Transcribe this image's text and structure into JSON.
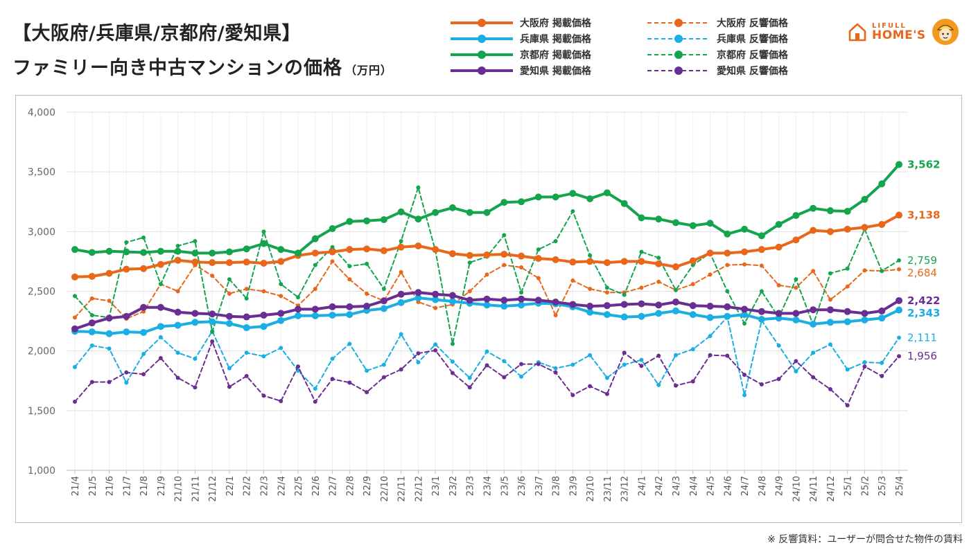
{
  "header": {
    "title_line1": "【大阪府/兵庫県/京都府/愛知県】",
    "title_line2": "ファミリー向き中古マンションの価格",
    "unit": "（万円）"
  },
  "logo": {
    "top": "LIFULL",
    "bottom": "HOME'S"
  },
  "footnote": "※ 反響賃料：ユーザーが問合せた物件の賃料",
  "colors": {
    "osaka": "#e8671a",
    "hyogo": "#1aaee3",
    "kyoto": "#14a44d",
    "aichi": "#6a2d91"
  },
  "chart_data": {
    "type": "line",
    "ylim": [
      1000,
      4000
    ],
    "yticks": [
      "1,000",
      "1,500",
      "2,000",
      "2,500",
      "3,000",
      "3,500",
      "4,000"
    ],
    "grid": true,
    "legend_position": "top",
    "categories": [
      "21/4",
      "21/5",
      "21/6",
      "21/7",
      "21/8",
      "21/9",
      "21/10",
      "21/11",
      "21/12",
      "22/1",
      "22/2",
      "22/3",
      "22/4",
      "22/5",
      "22/6",
      "22/7",
      "22/8",
      "22/9",
      "22/10",
      "22/11",
      "22/12",
      "23/1",
      "23/2",
      "23/3",
      "23/4",
      "23/5",
      "23/6",
      "23/7",
      "23/8",
      "23/9",
      "23/10",
      "23/11",
      "23/12",
      "24/1",
      "24/2",
      "24/3",
      "24/4",
      "24/5",
      "24/6",
      "24/7",
      "24/8",
      "24/9",
      "24/10",
      "24/11",
      "24/12",
      "25/1",
      "25/2",
      "25/3",
      "25/4"
    ],
    "series": [
      {
        "name": "大阪府 掲載価格",
        "color": "#e8671a",
        "style": "solid",
        "end_label": "3,138",
        "values": [
          2620,
          2625,
          2650,
          2685,
          2690,
          2725,
          2760,
          2745,
          2740,
          2740,
          2745,
          2735,
          2750,
          2800,
          2820,
          2830,
          2850,
          2855,
          2840,
          2870,
          2880,
          2850,
          2815,
          2800,
          2805,
          2810,
          2795,
          2775,
          2765,
          2745,
          2750,
          2740,
          2750,
          2750,
          2730,
          2705,
          2755,
          2820,
          2820,
          2830,
          2850,
          2870,
          2930,
          3010,
          3000,
          3020,
          3035,
          3060,
          3138
        ]
      },
      {
        "name": "兵庫県 掲載価格",
        "color": "#1aaee3",
        "style": "solid",
        "end_label": "2,343",
        "values": [
          2165,
          2160,
          2145,
          2160,
          2155,
          2205,
          2215,
          2240,
          2245,
          2230,
          2195,
          2205,
          2255,
          2295,
          2295,
          2300,
          2305,
          2340,
          2355,
          2405,
          2445,
          2430,
          2415,
          2400,
          2385,
          2375,
          2385,
          2400,
          2395,
          2370,
          2325,
          2305,
          2285,
          2290,
          2315,
          2335,
          2305,
          2280,
          2290,
          2305,
          2265,
          2275,
          2260,
          2225,
          2240,
          2245,
          2260,
          2275,
          2343
        ]
      },
      {
        "name": "京都府 掲載価格",
        "color": "#14a44d",
        "style": "solid",
        "end_label": "3,562",
        "values": [
          2850,
          2825,
          2835,
          2830,
          2825,
          2835,
          2835,
          2820,
          2820,
          2830,
          2855,
          2900,
          2850,
          2820,
          2940,
          3025,
          3085,
          3090,
          3100,
          3165,
          3105,
          3160,
          3200,
          3160,
          3160,
          3245,
          3250,
          3290,
          3290,
          3320,
          3275,
          3325,
          3235,
          3115,
          3105,
          3075,
          3050,
          3070,
          2980,
          3020,
          2965,
          3060,
          3135,
          3195,
          3175,
          3170,
          3270,
          3400,
          3562
        ]
      },
      {
        "name": "愛知県 掲載価格",
        "color": "#6a2d91",
        "style": "solid",
        "end_label": "2,422",
        "values": [
          2185,
          2235,
          2275,
          2290,
          2365,
          2365,
          2325,
          2315,
          2310,
          2290,
          2285,
          2300,
          2315,
          2350,
          2350,
          2370,
          2370,
          2375,
          2420,
          2475,
          2490,
          2475,
          2465,
          2425,
          2435,
          2425,
          2435,
          2425,
          2410,
          2390,
          2375,
          2380,
          2390,
          2395,
          2385,
          2410,
          2380,
          2375,
          2370,
          2350,
          2330,
          2315,
          2315,
          2345,
          2345,
          2330,
          2315,
          2335,
          2422
        ]
      },
      {
        "name": "大阪府 反響価格",
        "color": "#e8671a",
        "style": "dashed",
        "end_label": "2,684",
        "values": [
          2280,
          2440,
          2420,
          2270,
          2330,
          2560,
          2500,
          2720,
          2630,
          2480,
          2520,
          2500,
          2460,
          2380,
          2520,
          2750,
          2600,
          2480,
          2420,
          2660,
          2410,
          2360,
          2390,
          2500,
          2640,
          2720,
          2700,
          2610,
          2300,
          2590,
          2520,
          2490,
          2490,
          2530,
          2580,
          2510,
          2560,
          2640,
          2720,
          2725,
          2715,
          2550,
          2530,
          2670,
          2430,
          2540,
          2675,
          2670,
          2684
        ]
      },
      {
        "name": "兵庫県 反響価格",
        "color": "#1aaee3",
        "style": "dashed",
        "end_label": "2,111",
        "values": [
          1865,
          2045,
          2020,
          1735,
          1975,
          2115,
          1985,
          1935,
          2165,
          1855,
          1985,
          1955,
          2025,
          1835,
          1685,
          1935,
          2060,
          1835,
          1885,
          2140,
          1905,
          2055,
          1910,
          1775,
          1995,
          1915,
          1785,
          1905,
          1855,
          1885,
          1965,
          1775,
          1885,
          1925,
          1715,
          1965,
          2015,
          2125,
          2285,
          1630,
          2255,
          2045,
          1830,
          1985,
          2055,
          1845,
          1905,
          1900,
          2111
        ]
      },
      {
        "name": "京都府 反響価格",
        "color": "#14a44d",
        "style": "dashed",
        "end_label": "2,759",
        "values": [
          2460,
          2300,
          2280,
          2910,
          2950,
          2560,
          2880,
          2920,
          2160,
          2600,
          2440,
          3000,
          2560,
          2450,
          2720,
          2870,
          2710,
          2730,
          2520,
          2920,
          3370,
          2840,
          2060,
          2740,
          2790,
          2970,
          2490,
          2850,
          2920,
          3170,
          2800,
          2530,
          2470,
          2830,
          2780,
          2510,
          2720,
          2820,
          2500,
          2230,
          2500,
          2280,
          2600,
          2220,
          2650,
          2690,
          3020,
          2670,
          2759
        ]
      },
      {
        "name": "愛知県 反響価格",
        "color": "#6a2d91",
        "style": "dashed",
        "end_label": "1,956",
        "values": [
          1575,
          1740,
          1740,
          1820,
          1805,
          1940,
          1775,
          1695,
          2080,
          1700,
          1790,
          1625,
          1580,
          1870,
          1575,
          1765,
          1735,
          1655,
          1780,
          1845,
          1980,
          2005,
          1815,
          1695,
          1880,
          1780,
          1890,
          1890,
          1820,
          1630,
          1705,
          1640,
          1985,
          1875,
          1960,
          1710,
          1745,
          1965,
          1960,
          1800,
          1720,
          1765,
          1915,
          1780,
          1680,
          1545,
          1870,
          1790,
          1956
        ]
      }
    ]
  }
}
